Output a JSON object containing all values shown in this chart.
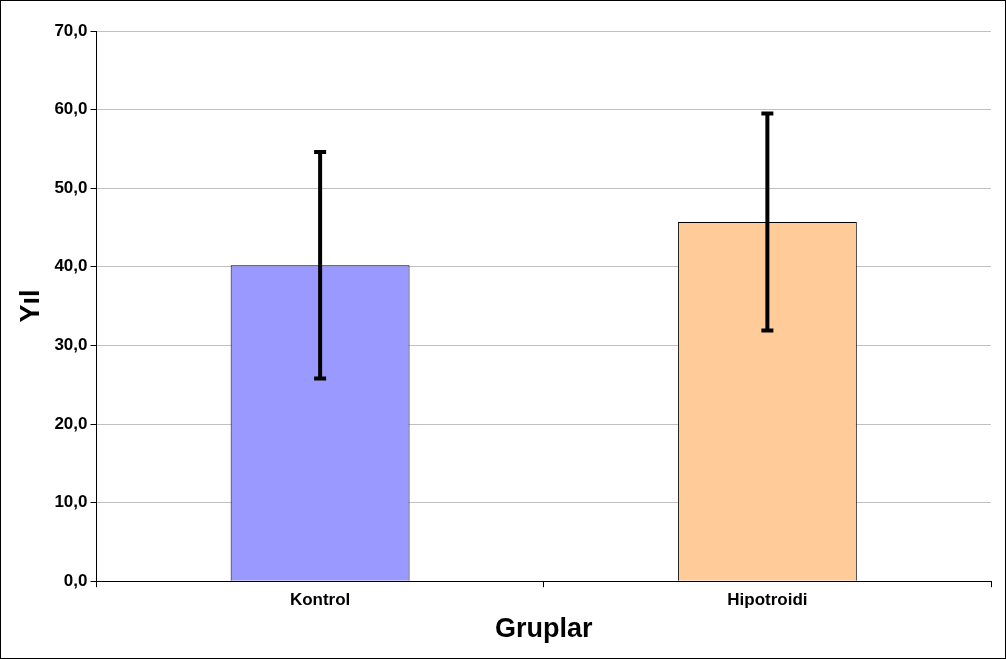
{
  "chart_data": {
    "type": "bar",
    "xlabel": "Gruplar",
    "ylabel": "Yıl",
    "categories": [
      "Kontrol",
      "Hipotroidi"
    ],
    "values": [
      40.2,
      45.7
    ],
    "colors": [
      "#9999ff",
      "#ffcc99"
    ],
    "errors": [
      14.4,
      13.8
    ],
    "ylim": [
      0,
      70
    ],
    "yticks": [
      {
        "value": 0,
        "label": "0,0"
      },
      {
        "value": 10,
        "label": "10,0"
      },
      {
        "value": 20,
        "label": "20,0"
      },
      {
        "value": 30,
        "label": "30,0"
      },
      {
        "value": 40,
        "label": "40,0"
      },
      {
        "value": 50,
        "label": "50,0"
      },
      {
        "value": 60,
        "label": "60,0"
      },
      {
        "value": 70,
        "label": "70,0"
      }
    ],
    "grid": "y",
    "legend": false
  }
}
